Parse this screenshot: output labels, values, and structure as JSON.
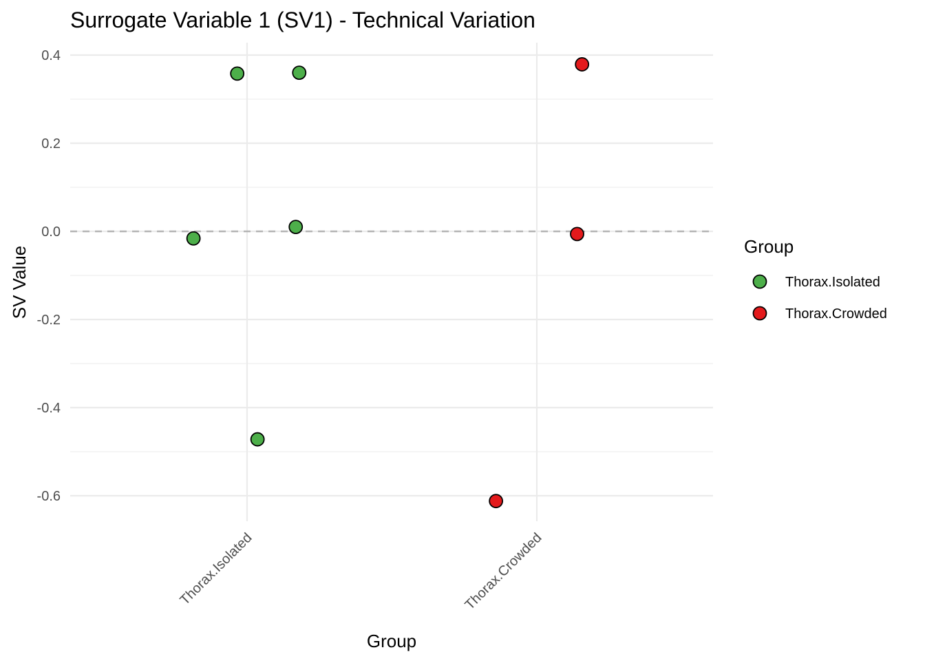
{
  "chart_data": {
    "type": "scatter",
    "title": "Surrogate Variable 1 (SV1) - Technical Variation",
    "xlabel": "Group",
    "ylabel": "SV Value",
    "categories": [
      "Thorax.Isolated",
      "Thorax.Crowded"
    ],
    "ylim": [
      -0.66,
      0.43
    ],
    "yticks": [
      0.4,
      0.2,
      0.0,
      -0.2,
      -0.4,
      -0.6
    ],
    "ytick_labels": [
      "0.4",
      "0.2",
      "0.0",
      "-0.2",
      "-0.4",
      "-0.6"
    ],
    "reference_line": {
      "y": 0.0,
      "style": "dashed"
    },
    "legend": {
      "title": "Group",
      "placement": "right"
    },
    "series": [
      {
        "name": "Thorax.Isolated",
        "color": "#4DAF4A",
        "points": [
          {
            "category": "Thorax.Isolated",
            "jitter": -0.034,
            "y": 0.358
          },
          {
            "category": "Thorax.Isolated",
            "jitter": 0.18,
            "y": 0.36
          },
          {
            "category": "Thorax.Isolated",
            "jitter": -0.185,
            "y": -0.016
          },
          {
            "category": "Thorax.Isolated",
            "jitter": 0.168,
            "y": 0.01
          },
          {
            "category": "Thorax.Isolated",
            "jitter": 0.036,
            "y": -0.472
          }
        ]
      },
      {
        "name": "Thorax.Crowded",
        "color": "#E41A1C",
        "points": [
          {
            "category": "Thorax.Crowded",
            "jitter": 0.156,
            "y": 0.379
          },
          {
            "category": "Thorax.Crowded",
            "jitter": 0.139,
            "y": -0.006
          },
          {
            "category": "Thorax.Crowded",
            "jitter": -0.141,
            "y": -0.612
          }
        ]
      }
    ]
  }
}
